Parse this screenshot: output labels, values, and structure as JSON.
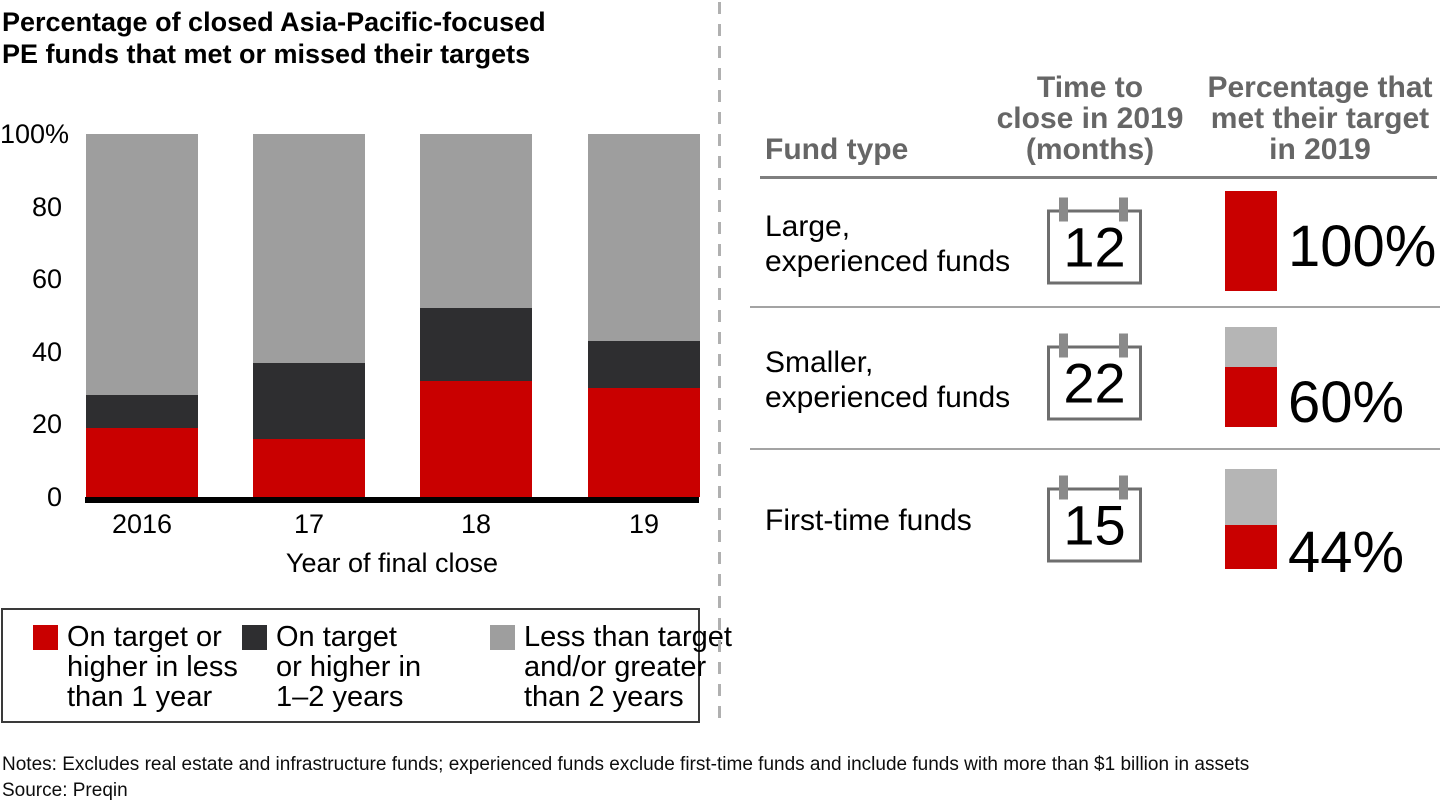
{
  "title": "Percentage of closed Asia-Pacific-focused\nPE funds that met or missed their targets",
  "colors": {
    "red": "#C90000",
    "dark": "#2E2E30",
    "gray": "#9E9E9E",
    "minibar_gray": "#B5B5B5",
    "header_text": "#666666"
  },
  "chart_data": {
    "type": "bar",
    "stacked": true,
    "title": "Percentage of closed Asia-Pacific-focused PE funds that met or missed their targets",
    "categories": [
      "2016",
      "17",
      "18",
      "19"
    ],
    "series": [
      {
        "name": "On target or higher in less than 1 year",
        "color": "#C90000",
        "values": [
          19,
          16,
          32,
          30
        ]
      },
      {
        "name": "On target or higher in 1–2 years",
        "color": "#2E2E30",
        "values": [
          9,
          21,
          20,
          13
        ]
      },
      {
        "name": "Less than target and/or greater than 2 years",
        "color": "#9E9E9E",
        "values": [
          72,
          63,
          48,
          57
        ]
      }
    ],
    "xlabel": "Year of final close",
    "ylabel": "",
    "ylim": [
      0,
      100
    ],
    "yticks": [
      {
        "value": 0,
        "label": "0"
      },
      {
        "value": 20,
        "label": "20"
      },
      {
        "value": 40,
        "label": "40"
      },
      {
        "value": 60,
        "label": "60"
      },
      {
        "value": 80,
        "label": "80"
      },
      {
        "value": 100,
        "label": "100%"
      }
    ],
    "grid": false,
    "legend_position": "bottom"
  },
  "legend": {
    "items": [
      {
        "label": "On target or\nhigher in less\nthan 1 year",
        "color": "#C90000"
      },
      {
        "label": "On target\nor higher in\n1–2 years",
        "color": "#2E2E30"
      },
      {
        "label": "Less than target\nand/or greater\nthan 2 years",
        "color": "#9E9E9E"
      }
    ]
  },
  "table": {
    "headers": {
      "fund_type": "Fund type",
      "time_to_close": "Time to\nclose in 2019\n(months)",
      "pct_met": "Percentage that\nmet their target\nin 2019"
    },
    "rows": [
      {
        "fund_type": "Large,\nexperienced funds",
        "months": "12",
        "pct_met": 100,
        "pct_label": "100%"
      },
      {
        "fund_type": "Smaller,\nexperienced funds",
        "months": "22",
        "pct_met": 60,
        "pct_label": "60%"
      },
      {
        "fund_type": "First-time funds",
        "months": "15",
        "pct_met": 44,
        "pct_label": "44%"
      }
    ]
  },
  "footnotes": {
    "notes": "Notes: Excludes real estate and infrastructure funds; experienced funds exclude first-time funds and include funds with more than $1 billion in assets",
    "source": "Source: Preqin"
  }
}
